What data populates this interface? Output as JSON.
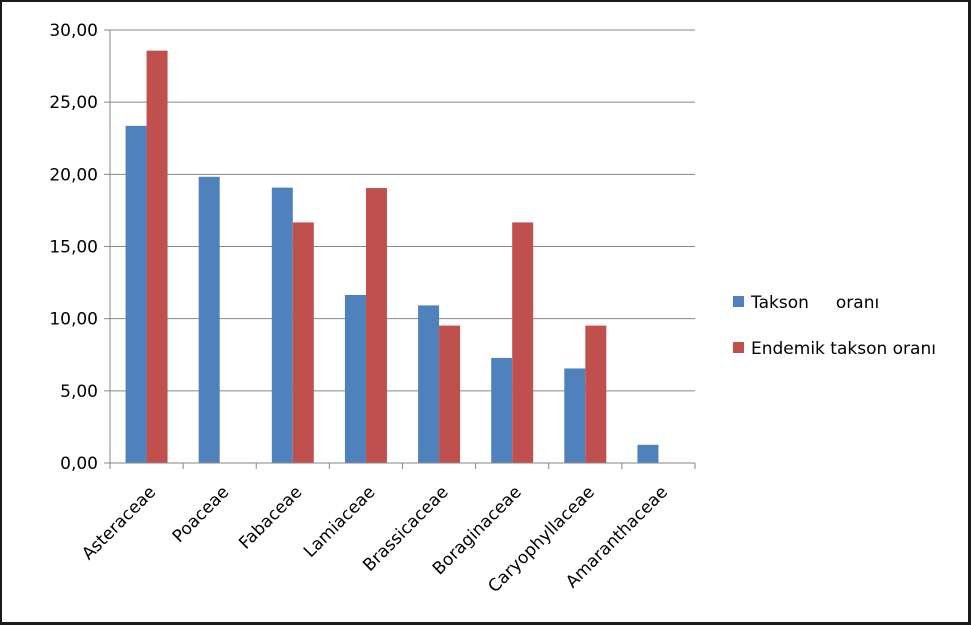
{
  "chart_data": {
    "type": "bar",
    "categories": [
      "Asteraceae",
      "Poaceae",
      "Fabaceae",
      "Lamiaceae",
      "Brassicaceae",
      "Boraginaceae",
      "Caryophyllaceae",
      "Amaranthaceae"
    ],
    "series": [
      {
        "name": "Takson     oranı",
        "color": "#4f81bd",
        "values": [
          23.36,
          19.83,
          19.08,
          11.64,
          10.92,
          7.28,
          6.55,
          1.26
        ]
      },
      {
        "name": "Endemik takson oranı",
        "color": "#c0504d",
        "values": [
          28.57,
          0,
          16.67,
          19.05,
          9.52,
          16.67,
          9.52,
          0
        ]
      }
    ],
    "ylim": [
      0,
      30
    ],
    "yticks": [
      "0,00",
      "5,00",
      "10,00",
      "15,00",
      "20,00",
      "25,00",
      "30,00"
    ],
    "grid": true,
    "legend_position": "right",
    "title": "",
    "xlabel": "",
    "ylabel": ""
  }
}
